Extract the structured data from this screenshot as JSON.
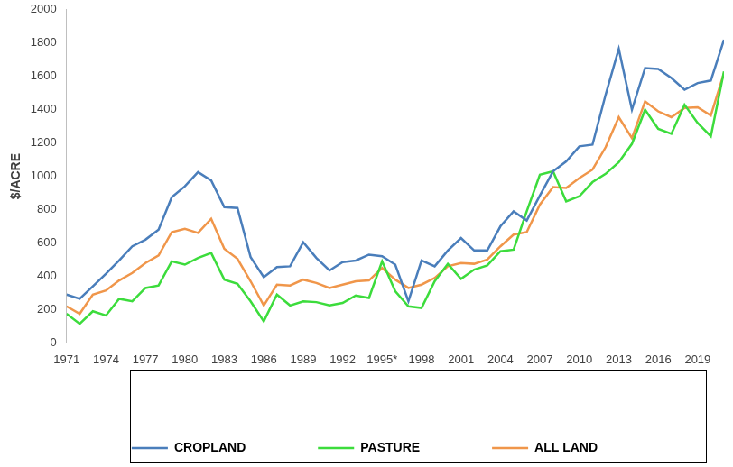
{
  "chart_data": {
    "type": "line",
    "y_label": "$/ACRE",
    "categories": [
      "1971",
      null,
      null,
      "1974",
      null,
      null,
      "1977",
      null,
      null,
      "1980",
      null,
      null,
      "1983",
      null,
      null,
      "1986",
      null,
      null,
      "1989",
      null,
      null,
      "1992",
      null,
      null,
      "1995*",
      null,
      null,
      "1998",
      null,
      null,
      "2001",
      null,
      null,
      "2004",
      null,
      null,
      "2007",
      null,
      null,
      "2010",
      null,
      null,
      "2013",
      null,
      null,
      "2016",
      null,
      null,
      "2019",
      null,
      null
    ],
    "series": [
      {
        "name": "ALL LAND",
        "color": "#f0964a",
        "values": [
          220,
          175,
          290,
          315,
          375,
          420,
          480,
          525,
          665,
          685,
          660,
          745,
          565,
          505,
          370,
          225,
          350,
          345,
          380,
          360,
          330,
          350,
          370,
          375,
          450,
          380,
          330,
          350,
          390,
          460,
          480,
          475,
          500,
          580,
          650,
          665,
          830,
          935,
          930,
          990,
          1040,
          1175,
          1355,
          1230,
          1450,
          1390,
          1355,
          1410,
          1415,
          1365,
          1620
        ]
      },
      {
        "name": "PASTURE",
        "color": "#3cdc3c",
        "values": [
          175,
          115,
          190,
          165,
          265,
          250,
          330,
          345,
          490,
          470,
          510,
          540,
          380,
          355,
          250,
          130,
          290,
          225,
          250,
          245,
          225,
          240,
          285,
          270,
          490,
          310,
          220,
          210,
          370,
          475,
          385,
          440,
          465,
          550,
          560,
          790,
          1010,
          1030,
          850,
          880,
          965,
          1015,
          1085,
          1195,
          1400,
          1285,
          1255,
          1430,
          1320,
          1240,
          1630
        ]
      },
      {
        "name": "CROPLAND",
        "color": "#4a7ebb",
        "values": [
          290,
          265,
          340,
          415,
          495,
          580,
          620,
          680,
          875,
          940,
          1025,
          975,
          815,
          810,
          515,
          395,
          455,
          460,
          605,
          510,
          435,
          485,
          495,
          530,
          520,
          470,
          250,
          495,
          460,
          555,
          630,
          555,
          555,
          700,
          790,
          735,
          885,
          1030,
          1090,
          1180,
          1190,
          1490,
          1765,
          1400,
          1650,
          1645,
          1590,
          1520,
          1560,
          1575,
          1820
        ]
      }
    ],
    "ylim": [
      0,
      2000
    ],
    "yticks": [
      0,
      200,
      400,
      600,
      800,
      1000,
      1200,
      1400,
      1600,
      1800,
      2000
    ],
    "grid": false,
    "legend": "bottom"
  }
}
